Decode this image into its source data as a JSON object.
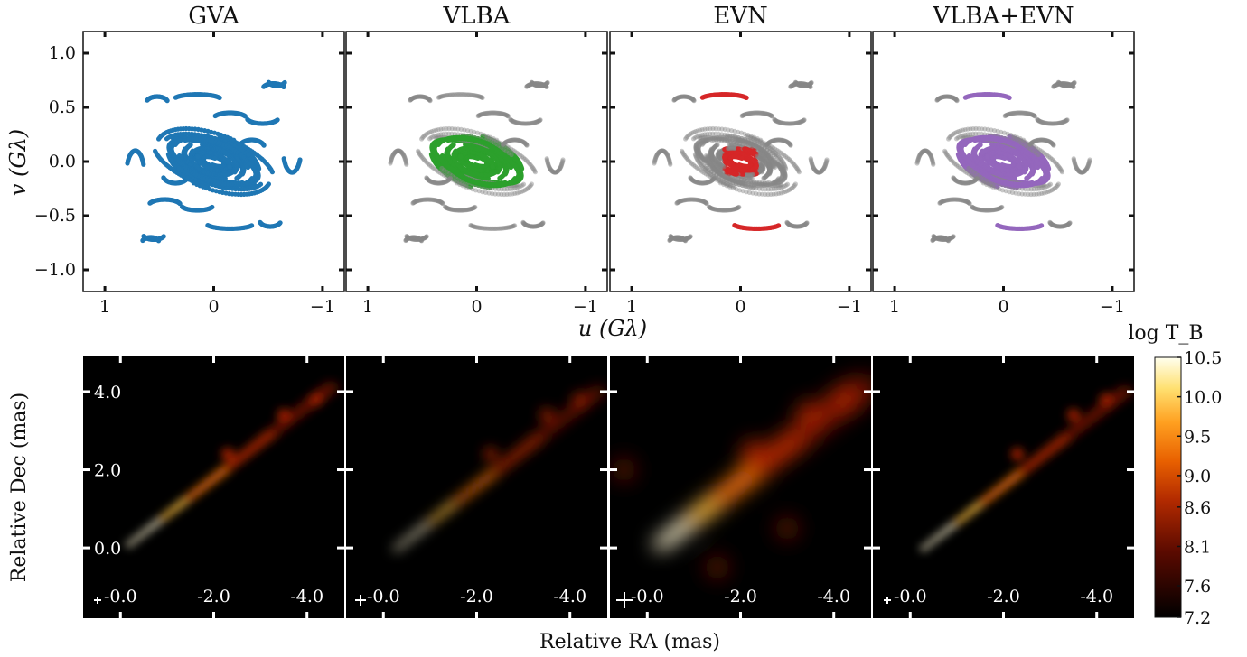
{
  "chart_data": [
    {
      "type": "scatter",
      "figure_row": "uv-coverage",
      "shared_xlabel": "u (Gλ)",
      "shared_ylabel": "v (Gλ)",
      "xlim": [
        1.2,
        -1.2
      ],
      "ylim": [
        -1.2,
        1.2
      ],
      "xticks": [
        "1",
        "0",
        "−1"
      ],
      "yticks": [
        "−1.0",
        "−0.5",
        "0.0",
        "0.5",
        "1.0"
      ],
      "grid": false,
      "panels": [
        {
          "title": "GVA",
          "highlight": "full",
          "color": "#1f77b4"
        },
        {
          "title": "VLBA",
          "highlight": "vlba",
          "color": "#2ca02c"
        },
        {
          "title": "EVN",
          "highlight": "evn",
          "color": "#d62728"
        },
        {
          "title": "VLBA+EVN",
          "highlight": "combined",
          "color": "#9467bd"
        }
      ],
      "background_color": "#888888"
    },
    {
      "type": "heatmap",
      "figure_row": "images",
      "shared_xlabel": "Relative RA (mas)",
      "shared_ylabel": "Relative Dec (mas)",
      "xlim": [
        0.8,
        -4.8
      ],
      "ylim": [
        -1.8,
        4.9
      ],
      "xticks": [
        "-0.0",
        "-2.0",
        "-4.0"
      ],
      "yticks": [
        "0.0",
        "2.0",
        "4.0"
      ],
      "colorbar": {
        "label": "log T_B",
        "min": 7.2,
        "max": 10.5,
        "ticks": [
          "7.2",
          "7.6",
          "8.1",
          "8.6",
          "9.0",
          "9.5",
          "10.0",
          "10.5"
        ],
        "colormap": "afmhot"
      },
      "panels": [
        {
          "beam": "small",
          "core_x": -0.2,
          "core_y": 0.1
        },
        {
          "beam": "medium",
          "core_x": -0.3,
          "core_y": 0.0
        },
        {
          "beam": "large",
          "core_x": -0.3,
          "core_y": 0.1
        },
        {
          "beam": "small",
          "core_x": -0.3,
          "core_y": 0.0
        }
      ]
    }
  ]
}
